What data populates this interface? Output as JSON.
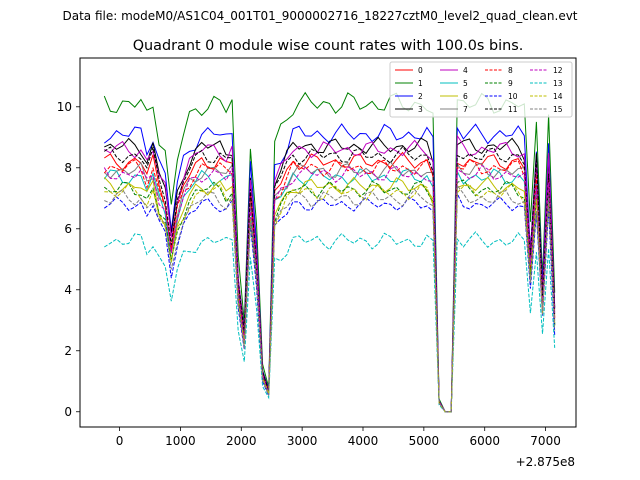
{
  "chart_data": {
    "type": "line",
    "suptitle": "Data file: modeM0/AS1C04_001T01_9000002716_18227cztM0_level2_quad_clean.evt",
    "title": "Quadrant 0 module wise count rates with 100.0s bins.",
    "xlabel": "",
    "ylabel": "",
    "x_offset_label": "+2.875e8",
    "xlim": [
      -650,
      7500
    ],
    "ylim": [
      -0.5,
      11.6
    ],
    "xticks": [
      0,
      1000,
      2000,
      3000,
      4000,
      5000,
      6000,
      7000
    ],
    "yticks": [
      0,
      2,
      4,
      6,
      8,
      10
    ],
    "legend_position": "top-right",
    "legend_columns": 4,
    "x": [
      -250,
      -150,
      -50,
      50,
      150,
      250,
      350,
      450,
      550,
      650,
      750,
      850,
      950,
      1050,
      1150,
      1250,
      1350,
      1450,
      1550,
      1650,
      1750,
      1850,
      1950,
      2050,
      2150,
      2250,
      2350,
      2450,
      2550,
      2650,
      2750,
      2850,
      2950,
      3050,
      3150,
      3250,
      3350,
      3450,
      3550,
      3650,
      3750,
      3850,
      3950,
      4050,
      4150,
      4250,
      4350,
      4450,
      4550,
      4650,
      4750,
      4850,
      4950,
      5050,
      5150,
      5250,
      5350,
      5450,
      5550,
      5650,
      5750,
      5850,
      5950,
      6050,
      6150,
      6250,
      6350,
      6450,
      6550,
      6650,
      6750,
      6850,
      6950,
      7050,
      7150
    ],
    "series": [
      {
        "name": "0",
        "color": "#ff0000",
        "dash": "solid",
        "base": 8.2,
        "amp": 0.3
      },
      {
        "name": "1",
        "color": "#008000",
        "dash": "solid",
        "base": 10.1,
        "amp": 0.4
      },
      {
        "name": "2",
        "color": "#0000ff",
        "dash": "solid",
        "base": 9.1,
        "amp": 0.35
      },
      {
        "name": "3",
        "color": "#000000",
        "dash": "solid",
        "base": 8.7,
        "amp": 0.3
      },
      {
        "name": "4",
        "color": "#bf00bf",
        "dash": "solid",
        "base": 8.6,
        "amp": 0.3
      },
      {
        "name": "5",
        "color": "#00bfbf",
        "dash": "solid",
        "base": 7.7,
        "amp": 0.3
      },
      {
        "name": "6",
        "color": "#bfbf00",
        "dash": "solid",
        "base": 7.4,
        "amp": 0.3
      },
      {
        "name": "7",
        "color": "#808080",
        "dash": "solid",
        "base": 7.9,
        "amp": 0.3
      },
      {
        "name": "8",
        "color": "#ff0000",
        "dash": "dashed",
        "base": 8.0,
        "amp": 0.3
      },
      {
        "name": "9",
        "color": "#008000",
        "dash": "dashed",
        "base": 7.3,
        "amp": 0.3
      },
      {
        "name": "10",
        "color": "#0000ff",
        "dash": "dashed",
        "base": 6.8,
        "amp": 0.25
      },
      {
        "name": "11",
        "color": "#000000",
        "dash": "dashed",
        "base": 8.4,
        "amp": 0.3
      },
      {
        "name": "12",
        "color": "#bf00bf",
        "dash": "dashed",
        "base": 7.8,
        "amp": 0.3
      },
      {
        "name": "13",
        "color": "#00bfbf",
        "dash": "dashed",
        "base": 5.6,
        "amp": 0.3
      },
      {
        "name": "14",
        "color": "#bfbf00",
        "dash": "dashed",
        "base": 7.2,
        "amp": 0.3
      },
      {
        "name": "15",
        "color": "#808080",
        "dash": "dashed",
        "base": 7.0,
        "amp": 0.3
      }
    ],
    "profile": [
      1.0,
      1.0,
      1.0,
      1.0,
      1.0,
      1.0,
      1.0,
      0.95,
      1.0,
      0.9,
      0.85,
      0.66,
      0.82,
      0.9,
      0.95,
      0.98,
      1.0,
      1.0,
      1.0,
      1.0,
      0.98,
      1.0,
      0.5,
      0.3,
      0.88,
      0.6,
      0.15,
      0.08,
      0.88,
      0.92,
      0.96,
      1.0,
      1.0,
      1.0,
      1.0,
      1.0,
      1.0,
      1.0,
      1.0,
      1.0,
      1.0,
      1.0,
      1.0,
      1.0,
      1.0,
      1.0,
      1.0,
      1.0,
      1.0,
      1.0,
      1.0,
      1.0,
      1.0,
      1.0,
      0.96,
      0.04,
      0.0,
      0.0,
      1.02,
      1.0,
      1.0,
      1.0,
      1.0,
      1.0,
      1.0,
      1.0,
      1.0,
      1.0,
      1.0,
      0.98,
      0.6,
      0.96,
      0.45,
      0.96,
      0.38
    ]
  }
}
